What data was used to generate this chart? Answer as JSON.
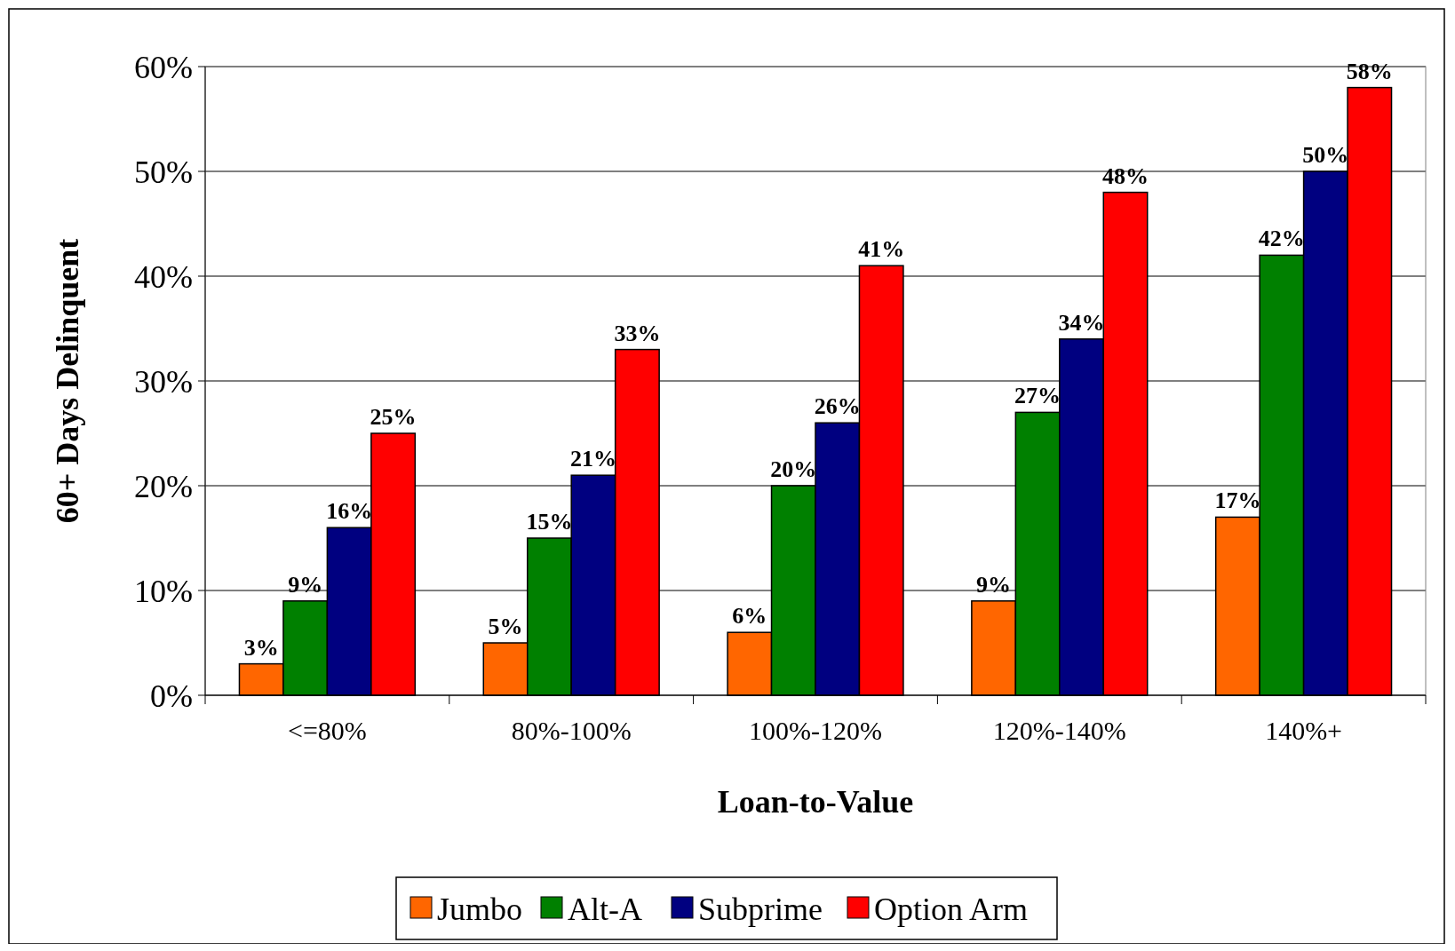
{
  "chart_data": {
    "type": "bar",
    "xlabel": "Loan-to-Value",
    "ylabel": "60+ Days Delinquent",
    "categories": [
      "<=80%",
      "80%-100%",
      "100%-120%",
      "120%-140%",
      "140%+"
    ],
    "series": [
      {
        "name": "Jumbo",
        "color": "#ff6600",
        "values": [
          3,
          5,
          6,
          9,
          17
        ],
        "value_labels": [
          "3%",
          "5%",
          "6%",
          "9%",
          "17%"
        ]
      },
      {
        "name": "Alt-A",
        "color": "#008000",
        "values": [
          9,
          15,
          20,
          27,
          42
        ],
        "value_labels": [
          "9%",
          "15%",
          "20%",
          "27%",
          "42%"
        ]
      },
      {
        "name": "Subprime",
        "color": "#000080",
        "values": [
          16,
          21,
          26,
          34,
          50
        ],
        "value_labels": [
          "16%",
          "21%",
          "26%",
          "34%",
          "50%"
        ]
      },
      {
        "name": "Option Arm",
        "color": "#ff0000",
        "values": [
          25,
          33,
          41,
          48,
          58
        ],
        "value_labels": [
          "25%",
          "33%",
          "41%",
          "48%",
          "58%"
        ]
      }
    ],
    "ylim": [
      0,
      60
    ],
    "yticks": [
      {
        "value": 0,
        "label": "0%"
      },
      {
        "value": 10,
        "label": "10%"
      },
      {
        "value": 20,
        "label": "20%"
      },
      {
        "value": 30,
        "label": "30%"
      },
      {
        "value": 40,
        "label": "40%"
      },
      {
        "value": 50,
        "label": "50%"
      },
      {
        "value": 60,
        "label": "60%"
      }
    ],
    "grid": "y",
    "legend": "bottom"
  }
}
